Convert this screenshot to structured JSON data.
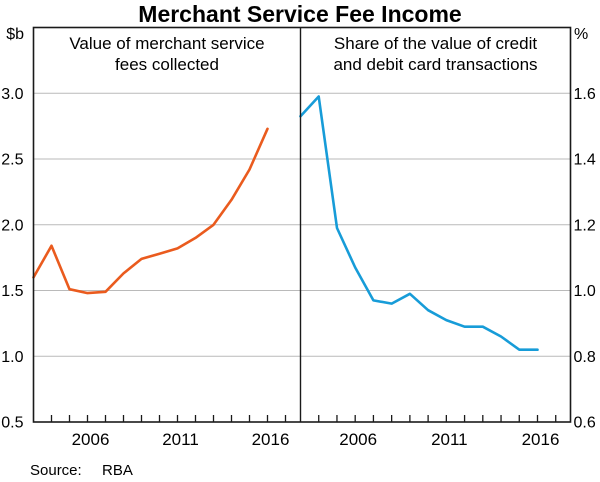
{
  "units": {
    "left": "$b",
    "right": "%"
  },
  "source": {
    "label": "Source:",
    "value": "RBA"
  },
  "colors": {
    "left_line": "#EA5B1E",
    "right_line": "#179CD8",
    "grid": "#BABABA",
    "frame": "#1A1A1A"
  },
  "chart_data": {
    "type": "line",
    "title": "Merchant Service Fee Income",
    "grid": true,
    "legend": false,
    "x_years": [
      2003,
      2004,
      2005,
      2006,
      2007,
      2008,
      2009,
      2010,
      2011,
      2012,
      2013,
      2014,
      2015,
      2016
    ],
    "xtick_labeled_years": [
      2006,
      2011,
      2016
    ],
    "panels": [
      {
        "label": "Value of merchant service fees collected",
        "label_lines": [
          "Value of merchant service",
          "fees collected"
        ],
        "axis_side": "left",
        "unit": "$b",
        "ylim": [
          0.5,
          3.5
        ],
        "yticks": [
          0.5,
          1.0,
          1.5,
          2.0,
          2.5,
          3.0
        ],
        "series": [
          {
            "key": "fees-line",
            "name": "Value of merchant service fees collected ($b)",
            "color": "#EA5B1E",
            "values": [
              1.6,
              1.84,
              1.51,
              1.48,
              1.49,
              1.63,
              1.74,
              1.78,
              1.82,
              1.9,
              2.0,
              2.19,
              2.42,
              2.73
            ]
          }
        ]
      },
      {
        "label": "Share of the value of credit and debit card transactions",
        "label_lines": [
          "Share of the value of credit",
          "and debit card transactions"
        ],
        "axis_side": "right",
        "unit": "%",
        "ylim": [
          0.6,
          1.8
        ],
        "yticks": [
          0.6,
          0.8,
          1.0,
          1.2,
          1.4,
          1.6
        ],
        "series": [
          {
            "key": "share-line",
            "name": "Share of the value of credit and debit card transactions (%)",
            "color": "#179CD8",
            "values": [
              1.53,
              1.59,
              1.19,
              1.07,
              0.97,
              0.96,
              0.99,
              0.94,
              0.91,
              0.89,
              0.89,
              0.86,
              0.82,
              0.82
            ]
          }
        ]
      }
    ]
  }
}
